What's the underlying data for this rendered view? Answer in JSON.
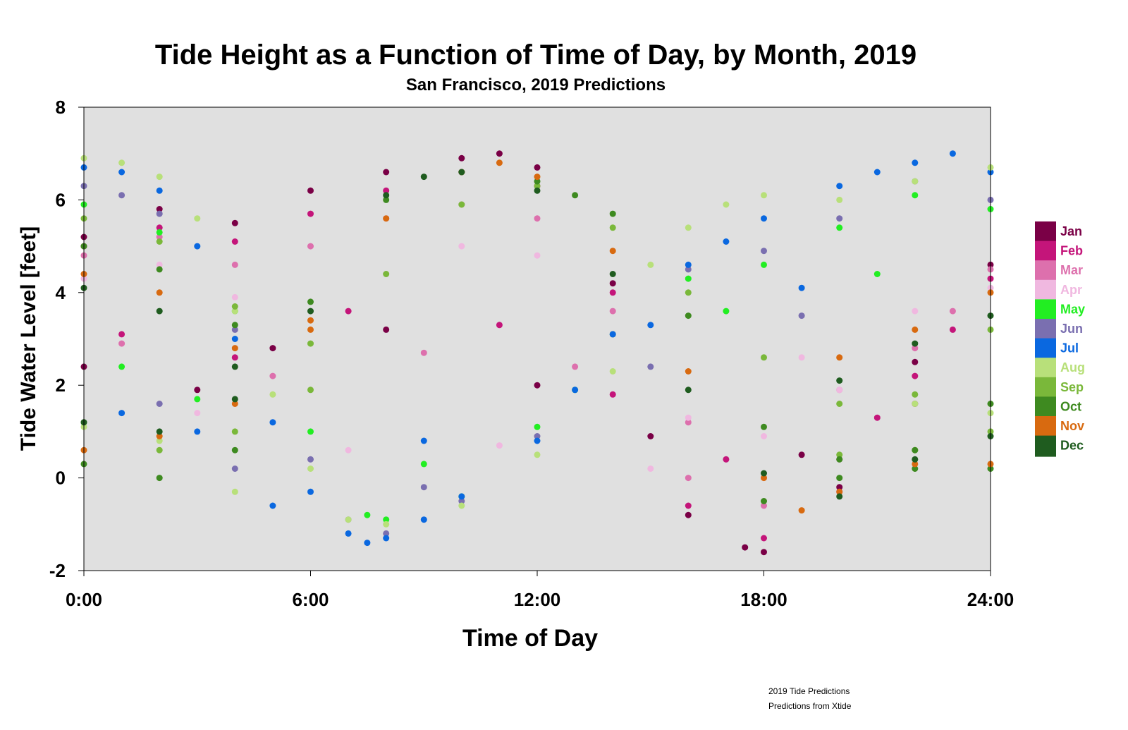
{
  "chart_data": {
    "type": "scatter",
    "title": "Tide Height as a Function of Time of Day, by Month, 2019",
    "subtitle": "San Francisco, 2019 Predictions",
    "xlabel": "Time of Day",
    "ylabel": "Tide Water Level [feet]",
    "xlim": [
      0,
      24
    ],
    "ylim": [
      -2,
      8
    ],
    "x_ticks": [
      {
        "value": 0,
        "label": "0:00"
      },
      {
        "value": 6,
        "label": "6:00"
      },
      {
        "value": 12,
        "label": "12:00"
      },
      {
        "value": 18,
        "label": "18:00"
      },
      {
        "value": 24,
        "label": "24:00"
      }
    ],
    "y_ticks": [
      {
        "value": -2,
        "label": "-2"
      },
      {
        "value": 0,
        "label": "0"
      },
      {
        "value": 2,
        "label": "2"
      },
      {
        "value": 4,
        "label": "4"
      },
      {
        "value": 6,
        "label": "6"
      },
      {
        "value": 8,
        "label": "8"
      }
    ],
    "plot_background": "#e0e0e0",
    "grid": false,
    "legend_position": "right",
    "series": [
      {
        "name": "Jan",
        "color": "#7a0046",
        "points": [
          [
            0,
            5.2
          ],
          [
            2,
            5.8
          ],
          [
            4,
            5.5
          ],
          [
            6,
            6.2
          ],
          [
            8,
            6.6
          ],
          [
            10,
            6.9
          ],
          [
            11,
            7.0
          ],
          [
            12,
            6.7
          ],
          [
            14,
            4.2
          ],
          [
            16,
            -0.8
          ],
          [
            17.5,
            -1.5
          ],
          [
            18,
            -1.6
          ],
          [
            20,
            -0.2
          ],
          [
            22,
            2.5
          ],
          [
            24,
            4.6
          ],
          [
            0,
            2.4
          ],
          [
            3,
            1.9
          ],
          [
            5,
            2.8
          ],
          [
            8,
            3.2
          ],
          [
            12,
            2.0
          ],
          [
            15,
            0.9
          ],
          [
            19,
            0.5
          ],
          [
            22,
            1.6
          ]
        ]
      },
      {
        "name": "Feb",
        "color": "#c4157a",
        "points": [
          [
            0,
            5.0
          ],
          [
            2,
            5.4
          ],
          [
            4,
            5.1
          ],
          [
            6,
            5.7
          ],
          [
            8,
            6.2
          ],
          [
            10,
            6.6
          ],
          [
            12,
            6.3
          ],
          [
            14,
            4.0
          ],
          [
            16,
            -0.6
          ],
          [
            18,
            -1.3
          ],
          [
            20,
            -0.3
          ],
          [
            22,
            2.2
          ],
          [
            24,
            4.3
          ],
          [
            1,
            3.1
          ],
          [
            4,
            2.6
          ],
          [
            7,
            3.6
          ],
          [
            11,
            3.3
          ],
          [
            14,
            1.8
          ],
          [
            17,
            0.4
          ],
          [
            21,
            1.3
          ],
          [
            23,
            3.2
          ]
        ]
      },
      {
        "name": "Mar",
        "color": "#dd70ad",
        "points": [
          [
            0,
            4.8
          ],
          [
            2,
            5.2
          ],
          [
            4,
            4.6
          ],
          [
            6,
            5.0
          ],
          [
            8,
            5.6
          ],
          [
            10,
            5.9
          ],
          [
            12,
            5.6
          ],
          [
            14,
            3.6
          ],
          [
            16,
            0.0
          ],
          [
            18,
            -0.6
          ],
          [
            20,
            0.4
          ],
          [
            22,
            2.8
          ],
          [
            24,
            4.5
          ],
          [
            1,
            2.9
          ],
          [
            5,
            2.2
          ],
          [
            9,
            2.7
          ],
          [
            13,
            2.4
          ],
          [
            16,
            1.2
          ],
          [
            20,
            1.9
          ],
          [
            23,
            3.6
          ]
        ]
      },
      {
        "name": "Apr",
        "color": "#f0b8e0",
        "points": [
          [
            0,
            4.3
          ],
          [
            2,
            4.6
          ],
          [
            4,
            3.9
          ],
          [
            6,
            3.6
          ],
          [
            8,
            4.4
          ],
          [
            10,
            5.0
          ],
          [
            12,
            4.8
          ],
          [
            14,
            3.1
          ],
          [
            16,
            1.3
          ],
          [
            18,
            0.9
          ],
          [
            20,
            1.9
          ],
          [
            22,
            3.6
          ],
          [
            24,
            4.1
          ],
          [
            3,
            1.4
          ],
          [
            7,
            0.6
          ],
          [
            11,
            0.7
          ],
          [
            15,
            0.2
          ],
          [
            19,
            2.6
          ]
        ]
      },
      {
        "name": "May",
        "color": "#22ee22",
        "points": [
          [
            0,
            5.9
          ],
          [
            2,
            5.3
          ],
          [
            4,
            3.6
          ],
          [
            6,
            1.0
          ],
          [
            7.5,
            -0.8
          ],
          [
            8,
            -0.9
          ],
          [
            10,
            -0.4
          ],
          [
            12,
            1.1
          ],
          [
            14,
            3.1
          ],
          [
            16,
            4.3
          ],
          [
            18,
            4.6
          ],
          [
            20,
            5.4
          ],
          [
            22,
            6.1
          ],
          [
            24,
            5.8
          ],
          [
            1,
            2.4
          ],
          [
            3,
            1.7
          ],
          [
            9,
            0.3
          ],
          [
            13,
            1.9
          ],
          [
            17,
            3.6
          ],
          [
            21,
            4.4
          ]
        ]
      },
      {
        "name": "Jun",
        "color": "#7a6fb0",
        "points": [
          [
            0,
            6.3
          ],
          [
            1,
            6.1
          ],
          [
            2,
            5.7
          ],
          [
            4,
            3.2
          ],
          [
            6,
            0.4
          ],
          [
            7,
            -0.9
          ],
          [
            8,
            -1.2
          ],
          [
            10,
            -0.5
          ],
          [
            12,
            0.9
          ],
          [
            14,
            3.1
          ],
          [
            16,
            4.5
          ],
          [
            18,
            4.9
          ],
          [
            20,
            5.6
          ],
          [
            22,
            6.4
          ],
          [
            24,
            6.0
          ],
          [
            2,
            1.6
          ],
          [
            4,
            0.2
          ],
          [
            9,
            -0.2
          ],
          [
            15,
            2.4
          ],
          [
            19,
            3.5
          ]
        ]
      },
      {
        "name": "Jul",
        "color": "#0a68e0",
        "points": [
          [
            0,
            6.7
          ],
          [
            1,
            6.6
          ],
          [
            2,
            6.2
          ],
          [
            3,
            5.0
          ],
          [
            4,
            3.0
          ],
          [
            5,
            1.2
          ],
          [
            6,
            -0.3
          ],
          [
            7,
            -1.2
          ],
          [
            7.5,
            -1.4
          ],
          [
            8,
            -1.3
          ],
          [
            9,
            -0.9
          ],
          [
            10,
            -0.4
          ],
          [
            12,
            0.8
          ],
          [
            13,
            1.9
          ],
          [
            14,
            3.1
          ],
          [
            16,
            4.6
          ],
          [
            17,
            5.1
          ],
          [
            18,
            5.6
          ],
          [
            20,
            6.3
          ],
          [
            21,
            6.6
          ],
          [
            22,
            6.8
          ],
          [
            23,
            7.0
          ],
          [
            24,
            6.6
          ],
          [
            1,
            1.4
          ],
          [
            3,
            1.0
          ],
          [
            5,
            -0.6
          ],
          [
            9,
            0.8
          ],
          [
            15,
            3.3
          ],
          [
            19,
            4.1
          ]
        ]
      },
      {
        "name": "Aug",
        "color": "#b8e07a",
        "points": [
          [
            0,
            6.9
          ],
          [
            1,
            6.8
          ],
          [
            2,
            6.5
          ],
          [
            3,
            5.6
          ],
          [
            4,
            3.6
          ],
          [
            5,
            1.8
          ],
          [
            6,
            0.2
          ],
          [
            7,
            -0.9
          ],
          [
            8,
            -1.0
          ],
          [
            10,
            -0.6
          ],
          [
            12,
            0.5
          ],
          [
            14,
            2.3
          ],
          [
            15,
            4.6
          ],
          [
            16,
            5.4
          ],
          [
            17,
            5.9
          ],
          [
            18,
            6.1
          ],
          [
            20,
            6.0
          ],
          [
            22,
            6.4
          ],
          [
            24,
            6.7
          ],
          [
            0,
            1.1
          ],
          [
            2,
            0.8
          ],
          [
            4,
            -0.3
          ],
          [
            22,
            1.6
          ],
          [
            24,
            1.4
          ]
        ]
      },
      {
        "name": "Sep",
        "color": "#7ab83a",
        "points": [
          [
            0,
            5.6
          ],
          [
            2,
            5.1
          ],
          [
            4,
            3.7
          ],
          [
            6,
            2.9
          ],
          [
            8,
            4.4
          ],
          [
            10,
            5.9
          ],
          [
            12,
            6.3
          ],
          [
            14,
            5.4
          ],
          [
            16,
            4.0
          ],
          [
            18,
            2.6
          ],
          [
            20,
            1.6
          ],
          [
            22,
            1.8
          ],
          [
            24,
            3.2
          ],
          [
            0,
            1.2
          ],
          [
            2,
            0.6
          ],
          [
            4,
            1.0
          ],
          [
            6,
            1.9
          ],
          [
            20,
            0.5
          ],
          [
            22,
            0.6
          ],
          [
            24,
            1.0
          ]
        ]
      },
      {
        "name": "Oct",
        "color": "#3e8a20",
        "points": [
          [
            0,
            5.0
          ],
          [
            2,
            4.5
          ],
          [
            4,
            3.3
          ],
          [
            6,
            3.8
          ],
          [
            8,
            6.0
          ],
          [
            10,
            6.6
          ],
          [
            12,
            6.4
          ],
          [
            13,
            6.1
          ],
          [
            14,
            5.7
          ],
          [
            16,
            3.5
          ],
          [
            18,
            1.1
          ],
          [
            20,
            0.4
          ],
          [
            22,
            0.6
          ],
          [
            24,
            1.6
          ],
          [
            0,
            0.3
          ],
          [
            2,
            0.0
          ],
          [
            4,
            0.6
          ],
          [
            18,
            -0.5
          ],
          [
            20,
            0.0
          ],
          [
            22,
            0.2
          ],
          [
            24,
            0.2
          ]
        ]
      },
      {
        "name": "Nov",
        "color": "#d86a10",
        "points": [
          [
            0,
            0.6
          ],
          [
            2,
            0.9
          ],
          [
            4,
            1.6
          ],
          [
            6,
            3.2
          ],
          [
            8,
            5.6
          ],
          [
            10,
            6.6
          ],
          [
            11,
            6.8
          ],
          [
            12,
            6.5
          ],
          [
            14,
            4.9
          ],
          [
            16,
            2.3
          ],
          [
            18,
            0.0
          ],
          [
            19,
            -0.7
          ],
          [
            20,
            -0.3
          ],
          [
            22,
            0.3
          ],
          [
            24,
            0.3
          ],
          [
            0,
            4.4
          ],
          [
            2,
            4.0
          ],
          [
            4,
            2.8
          ],
          [
            6,
            3.4
          ],
          [
            20,
            2.6
          ],
          [
            22,
            3.2
          ],
          [
            24,
            4.0
          ]
        ]
      },
      {
        "name": "Dec",
        "color": "#1f5c1f",
        "points": [
          [
            0,
            1.2
          ],
          [
            2,
            1.0
          ],
          [
            4,
            1.7
          ],
          [
            6,
            3.6
          ],
          [
            8,
            6.1
          ],
          [
            9,
            6.5
          ],
          [
            10,
            6.6
          ],
          [
            12,
            6.2
          ],
          [
            14,
            4.4
          ],
          [
            16,
            1.9
          ],
          [
            18,
            0.1
          ],
          [
            20,
            -0.4
          ],
          [
            22,
            0.4
          ],
          [
            24,
            0.9
          ],
          [
            0,
            4.1
          ],
          [
            2,
            3.6
          ],
          [
            4,
            2.4
          ],
          [
            20,
            2.1
          ],
          [
            22,
            2.9
          ],
          [
            24,
            3.5
          ]
        ]
      }
    ]
  },
  "footer": {
    "line1": "2019 Tide Predictions",
    "line2": "Predictions from Xtide"
  }
}
